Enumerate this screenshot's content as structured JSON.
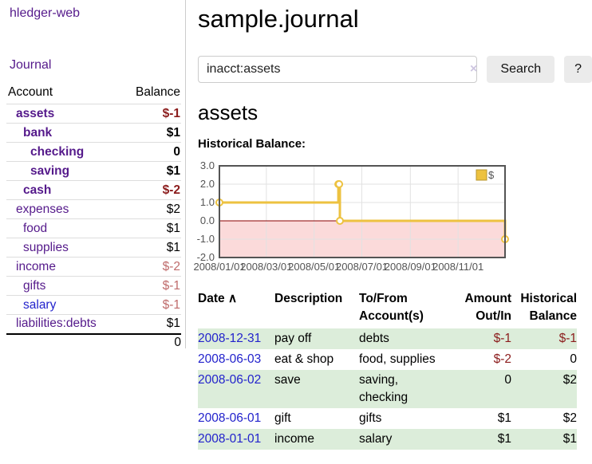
{
  "app": {
    "title": "hledger-web",
    "nav_journal": "Journal"
  },
  "header": {
    "title": "sample.journal"
  },
  "search": {
    "value": "inacct:assets",
    "clear_icon": "×",
    "button_label": "Search",
    "help_label": "?"
  },
  "account_page": {
    "heading": "assets",
    "chart_label": "Historical Balance:"
  },
  "sidebar": {
    "table": {
      "col_account": "Account",
      "col_balance": "Balance",
      "accounts": [
        {
          "label": "assets",
          "balance": "$-1",
          "level": 1,
          "bold": true,
          "neg": "strong",
          "link_color": "purple"
        },
        {
          "label": "bank",
          "balance": "$1",
          "level": 2,
          "bold": true,
          "neg": "none",
          "link_color": "purple"
        },
        {
          "label": "checking",
          "balance": "0",
          "level": 3,
          "bold": true,
          "neg": "none",
          "link_color": "purple"
        },
        {
          "label": "saving",
          "balance": "$1",
          "level": 3,
          "bold": true,
          "neg": "none",
          "link_color": "purple"
        },
        {
          "label": "cash",
          "balance": "$-2",
          "level": 2,
          "bold": true,
          "neg": "strong",
          "link_color": "purple"
        },
        {
          "label": "expenses",
          "balance": "$2",
          "level": 1,
          "bold": false,
          "neg": "none",
          "link_color": "purple"
        },
        {
          "label": "food",
          "balance": "$1",
          "level": 2,
          "bold": false,
          "neg": "none",
          "link_color": "purple"
        },
        {
          "label": "supplies",
          "balance": "$1",
          "level": 2,
          "bold": false,
          "neg": "none",
          "link_color": "purple"
        },
        {
          "label": "income",
          "balance": "$-2",
          "level": 1,
          "bold": false,
          "neg": "soft",
          "link_color": "purple"
        },
        {
          "label": "gifts",
          "balance": "$-1",
          "level": 2,
          "bold": false,
          "neg": "soft",
          "link_color": "purple"
        },
        {
          "label": "salary",
          "balance": "$-1",
          "level": 2,
          "bold": false,
          "neg": "soft",
          "link_color": "blue"
        },
        {
          "label": "liabilities:debts",
          "balance": "$1",
          "level": 1,
          "bold": false,
          "neg": "none",
          "link_color": "purple"
        }
      ],
      "total": "0"
    }
  },
  "chart_data": {
    "type": "line",
    "title": "Historical Balance",
    "steps": true,
    "x": [
      "2008-01-01",
      "2008-06-01",
      "2008-06-02",
      "2008-06-03",
      "2008-12-31"
    ],
    "series": [
      {
        "name": "$",
        "values": [
          1,
          2,
          2,
          0,
          -1
        ]
      }
    ],
    "xlim": [
      "2008-01-01",
      "2008-12-31"
    ],
    "ylim": [
      -2,
      3
    ],
    "yticks": [
      3.0,
      2.0,
      1.0,
      0.0,
      -1.0,
      -2.0
    ],
    "xticks": [
      {
        "date": "2008-01-01",
        "label": "2008/01/01"
      },
      {
        "date": "2008-03-01",
        "label": "2008/03/01"
      },
      {
        "date": "2008-05-01",
        "label": "2008/05/01"
      },
      {
        "date": "2008-07-01",
        "label": "2008/07/01"
      },
      {
        "date": "2008-09-01",
        "label": "2008/09/01"
      },
      {
        "date": "2008-11-01",
        "label": "2008/11/01"
      }
    ],
    "grid": true,
    "legend_position": "top-right",
    "series_color": "#edc240",
    "negative_region_fill": "#fbdada",
    "zero_line_color": "#8b0000",
    "plot_border_color": "#545454",
    "grid_color": "#e2e2e2",
    "tick_label_color": "#545454"
  },
  "register": {
    "columns": {
      "date": "Date",
      "sort_icon": "∧",
      "description": "Description",
      "account": "To/From Account(s)",
      "amount": "Amount Out/In",
      "balance": "Historical Balance"
    },
    "rows": [
      {
        "date": "2008-12-31",
        "description": "pay off",
        "accounts": "debts",
        "amount": "$-1",
        "amount_neg": true,
        "balance": "$-1",
        "balance_neg": true
      },
      {
        "date": "2008-06-03",
        "description": "eat & shop",
        "accounts": "food, supplies",
        "amount": "$-2",
        "amount_neg": true,
        "balance": "0",
        "balance_neg": false
      },
      {
        "date": "2008-06-02",
        "description": "save",
        "accounts": "saving, checking",
        "amount": "0",
        "amount_neg": false,
        "balance": "$2",
        "balance_neg": false
      },
      {
        "date": "2008-06-01",
        "description": "gift",
        "accounts": "gifts",
        "amount": "$1",
        "amount_neg": false,
        "balance": "$2",
        "balance_neg": false
      },
      {
        "date": "2008-01-01",
        "description": "income",
        "accounts": "salary",
        "amount": "$1",
        "amount_neg": false,
        "balance": "$1",
        "balance_neg": false
      }
    ]
  },
  "colors": {
    "link_purple": "#551a8b",
    "link_blue": "#2222cc",
    "negative_strong": "#8b1c1c",
    "negative_soft": "#bf6b6b",
    "row_stripe_green": "#dcedda",
    "button_bg": "#ebebeb",
    "input_border": "#cccccc"
  }
}
